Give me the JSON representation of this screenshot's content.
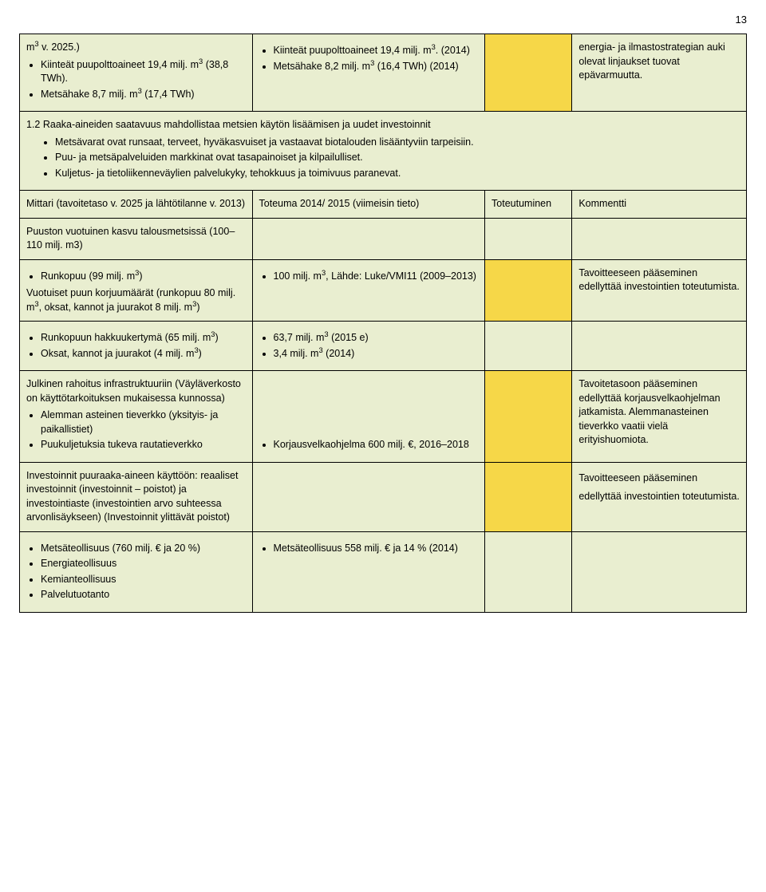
{
  "page_number": "13",
  "row1": {
    "c1_line1": "m",
    "c1_sup1": "3",
    "c1_line1b": " v. 2025.)",
    "c1_b1a": "Kiinteät puupolttoaineet 19,4 milj. m",
    "c1_b1sup": "3",
    "c1_b1b": " (38,8 TWh).",
    "c1_b2a": "Metsähake 8,7 milj. m",
    "c1_b2sup": "3",
    "c1_b2b": " (17,4 TWh)",
    "c2_b1a": "Kiinteät puupolttoaineet 19,4 milj. m",
    "c2_b1sup": "3",
    "c2_b1b": ". (2014)",
    "c2_b2a": "Metsähake 8,2 milj. m",
    "c2_b2sup": "3",
    "c2_b2b": " (16,4 TWh) (2014)",
    "c4": "energia- ja ilmastostrategian auki olevat linjaukset tuovat epävarmuutta."
  },
  "section": {
    "title": "1.2 Raaka-aineiden saatavuus mahdollistaa metsien käytön lisäämisen ja uudet investoinnit",
    "b1": "Metsävarat ovat runsaat, terveet, hyväkasvuiset ja vastaavat biotalouden lisääntyviin tarpeisiin.",
    "b2": "Puu- ja metsäpalveluiden markkinat ovat tasapainoiset ja kilpailulliset.",
    "b3": "Kuljetus- ja tietoliikenneväylien palvelukyky, tehokkuus ja toimivuus paranevat."
  },
  "header": {
    "c1": "Mittari (tavoitetaso v. 2025 ja lähtötilanne v. 2013)",
    "c2": "Toteuma 2014/ 2015 (viimeisin tieto)",
    "c3": "Toteutuminen",
    "c4": "Kommentti"
  },
  "row3": {
    "c1": "Puuston vuotuinen kasvu talousmetsissä (100–110 milj. m3)"
  },
  "row4": {
    "c1_b1a": "Runkopuu (99 milj. m",
    "c1_b1sup": "3",
    "c1_b1b": ")",
    "c1_p1a": "Vuotuiset puun korjuumäärät (runkopuu 80 milj. m",
    "c1_p1sup": "3",
    "c1_p1b": ", oksat, kannot ja juurakot 8 milj. m",
    "c1_p1sup2": "3",
    "c1_p1c": ")",
    "c2_b1a": "100 milj. m",
    "c2_b1sup": "3",
    "c2_b1b": ", Lähde: Luke/VMI11 (2009–2013)",
    "c4": "Tavoitteeseen pääseminen edellyttää investointien toteutumista."
  },
  "row5": {
    "c1_b1a": "Runkopuun hakkuukertymä (65 milj. m",
    "c1_b1sup": "3",
    "c1_b1b": ")",
    "c1_b2a": "Oksat, kannot ja juurakot (4 milj. m",
    "c1_b2sup": "3",
    "c1_b2b": ")",
    "c2_b1a": "63,7 milj. m",
    "c2_b1sup": "3",
    "c2_b1b": " (2015 e)",
    "c2_b2a": "3,4 milj. m",
    "c2_b2sup": "3",
    "c2_b2b": " (2014)"
  },
  "row6": {
    "c1_p1": "Julkinen rahoitus infrastruktuuriin (Väyläverkosto on käyttötarkoituksen mukaisessa kunnossa)",
    "c1_b1": "Alemman asteinen tieverkko (yksityis- ja paikallistiet)",
    "c1_b2": "Puukuljetuksia tukeva rautatieverkko",
    "c2_b1": "Korjausvelkaohjelma 600 milj. €, 2016–2018",
    "c4": "Tavoitetasoon pääseminen edellyttää korjausvelkaohjelman jatkamista. Alemmanasteinen tieverkko vaatii vielä erityishuomiota."
  },
  "row7": {
    "c1_p1": "Investoinnit puuraaka-aineen käyttöön: reaaliset investoinnit (investoinnit – poistot) ja investointiaste (investointien arvo suhteessa arvonlisäykseen) (Investoinnit ylittävät poistot)",
    "c4": "Tavoitteeseen pääseminen edellyttää investointien toteutumista."
  },
  "row8": {
    "c1_b1": "Metsäteollisuus (760 milj. € ja 20 %)",
    "c1_b2": "Energiateollisuus",
    "c1_b3": "Kemianteollisuus",
    "c1_b4": "Palvelutuotanto",
    "c2_b1": "Metsäteollisuus 558 milj. € ja 14 % (2014)"
  }
}
